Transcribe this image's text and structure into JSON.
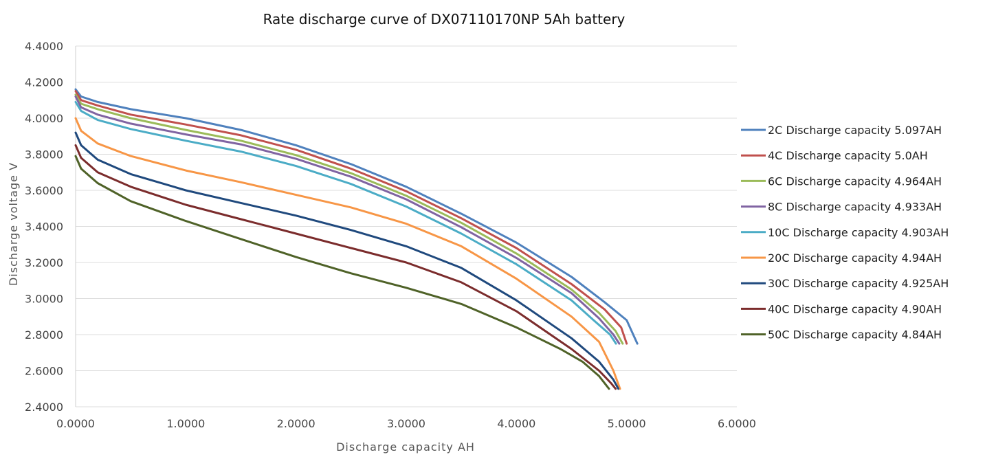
{
  "chart_data": {
    "type": "line",
    "title": "Rate discharge curve of DX07110170NP 5Ah battery",
    "xlabel": "Discharge capacity AH",
    "ylabel": "Discharge voltage V",
    "xlim": [
      0,
      6
    ],
    "ylim": [
      2.4,
      4.4
    ],
    "x_ticks": [
      "0.0000",
      "1.0000",
      "2.0000",
      "3.0000",
      "4.0000",
      "5.0000",
      "6.0000"
    ],
    "y_ticks": [
      "2.4000",
      "2.6000",
      "2.8000",
      "3.0000",
      "3.2000",
      "3.4000",
      "3.6000",
      "3.8000",
      "4.0000",
      "4.2000",
      "4.4000"
    ],
    "grid": "horizontal",
    "legend_position": "right",
    "series": [
      {
        "name": "2C Discharge capacity 5.097AH",
        "color": "#4F81BD",
        "x": [
          0,
          0.05,
          0.2,
          0.5,
          1.0,
          1.5,
          2.0,
          2.5,
          3.0,
          3.5,
          4.0,
          4.5,
          4.8,
          5.0,
          5.097
        ],
        "y": [
          4.16,
          4.12,
          4.09,
          4.05,
          4.0,
          3.935,
          3.85,
          3.745,
          3.62,
          3.47,
          3.31,
          3.12,
          2.98,
          2.88,
          2.75
        ]
      },
      {
        "name": "4C Discharge capacity 5.0AH",
        "color": "#C0504D",
        "x": [
          0,
          0.05,
          0.2,
          0.5,
          1.0,
          1.5,
          2.0,
          2.5,
          3.0,
          3.5,
          4.0,
          4.5,
          4.8,
          4.95,
          5.0
        ],
        "y": [
          4.15,
          4.1,
          4.07,
          4.02,
          3.965,
          3.905,
          3.825,
          3.72,
          3.595,
          3.445,
          3.28,
          3.08,
          2.94,
          2.84,
          2.75
        ]
      },
      {
        "name": "6C Discharge capacity 4.964AH",
        "color": "#9BBB59",
        "x": [
          0,
          0.05,
          0.2,
          0.5,
          1.0,
          1.5,
          2.0,
          2.5,
          3.0,
          3.5,
          4.0,
          4.5,
          4.75,
          4.9,
          4.964
        ],
        "y": [
          4.13,
          4.08,
          4.05,
          4.0,
          3.935,
          3.875,
          3.795,
          3.695,
          3.57,
          3.42,
          3.25,
          3.05,
          2.92,
          2.82,
          2.75
        ]
      },
      {
        "name": "8C Discharge capacity 4.933AH",
        "color": "#8064A2",
        "x": [
          0,
          0.05,
          0.2,
          0.5,
          1.0,
          1.5,
          2.0,
          2.5,
          3.0,
          3.5,
          4.0,
          4.5,
          4.75,
          4.88,
          4.933
        ],
        "y": [
          4.12,
          4.06,
          4.02,
          3.97,
          3.91,
          3.855,
          3.775,
          3.675,
          3.55,
          3.395,
          3.225,
          3.03,
          2.89,
          2.8,
          2.75
        ]
      },
      {
        "name": "10C Discharge capacity 4.903AH",
        "color": "#4BACC6",
        "x": [
          0,
          0.05,
          0.2,
          0.5,
          1.0,
          1.5,
          2.0,
          2.5,
          3.0,
          3.5,
          4.0,
          4.5,
          4.7,
          4.85,
          4.903
        ],
        "y": [
          4.09,
          4.04,
          3.99,
          3.94,
          3.875,
          3.815,
          3.735,
          3.635,
          3.51,
          3.36,
          3.19,
          2.99,
          2.88,
          2.8,
          2.75
        ]
      },
      {
        "name": "20C Discharge capacity 4.94AH",
        "color": "#F79646",
        "x": [
          0,
          0.05,
          0.2,
          0.5,
          1.0,
          1.5,
          2.0,
          2.5,
          3.0,
          3.5,
          4.0,
          4.5,
          4.75,
          4.88,
          4.94
        ],
        "y": [
          4.0,
          3.93,
          3.86,
          3.79,
          3.71,
          3.645,
          3.575,
          3.505,
          3.415,
          3.29,
          3.11,
          2.9,
          2.76,
          2.6,
          2.5
        ]
      },
      {
        "name": "30C Discharge capacity 4.925AH",
        "color": "#1F497D",
        "x": [
          0,
          0.05,
          0.2,
          0.5,
          1.0,
          1.5,
          2.0,
          2.5,
          3.0,
          3.5,
          4.0,
          4.5,
          4.75,
          4.88,
          4.925
        ],
        "y": [
          3.92,
          3.85,
          3.77,
          3.69,
          3.6,
          3.53,
          3.46,
          3.38,
          3.29,
          3.17,
          2.99,
          2.78,
          2.65,
          2.55,
          2.5
        ]
      },
      {
        "name": "40C Discharge capacity 4.90AH",
        "color": "#7B2C2C",
        "x": [
          0,
          0.05,
          0.2,
          0.5,
          1.0,
          1.5,
          2.0,
          2.5,
          3.0,
          3.5,
          4.0,
          4.5,
          4.75,
          4.86,
          4.9
        ],
        "y": [
          3.85,
          3.78,
          3.7,
          3.62,
          3.52,
          3.44,
          3.36,
          3.28,
          3.2,
          3.09,
          2.93,
          2.72,
          2.6,
          2.53,
          2.5
        ]
      },
      {
        "name": "50C Discharge capacity 4.84AH",
        "color": "#4F6228",
        "x": [
          0,
          0.05,
          0.2,
          0.5,
          1.0,
          1.5,
          2.0,
          2.5,
          3.0,
          3.5,
          4.0,
          4.4,
          4.6,
          4.75,
          4.84
        ],
        "y": [
          3.79,
          3.72,
          3.64,
          3.54,
          3.43,
          3.33,
          3.23,
          3.14,
          3.06,
          2.97,
          2.84,
          2.72,
          2.65,
          2.57,
          2.5
        ]
      }
    ]
  }
}
